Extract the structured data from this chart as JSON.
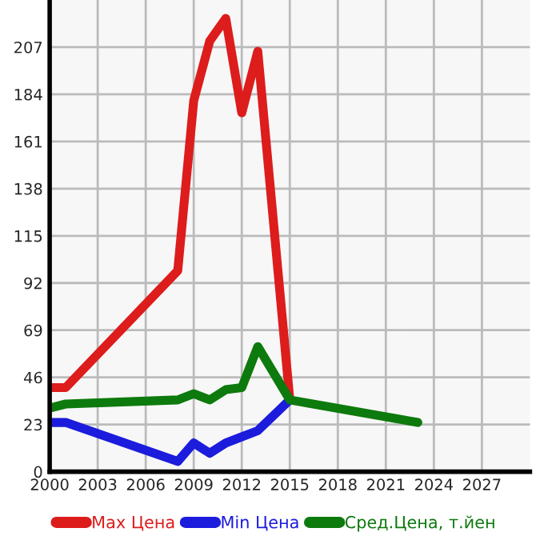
{
  "chart_data": {
    "type": "line",
    "x": [
      2000,
      2001,
      2008,
      2009,
      2010,
      2011,
      2012,
      2013,
      2015
    ],
    "series": [
      {
        "name": "Max Цена",
        "color": "#dd1c1c",
        "values": [
          41,
          41,
          98,
          181,
          210,
          221,
          175,
          205,
          35
        ]
      },
      {
        "name": "Min Цена",
        "color": "#1c1cdd",
        "values": [
          24,
          24,
          5,
          14,
          9,
          14,
          17,
          20,
          35
        ]
      },
      {
        "name": "Сред.Цена, т.йен",
        "color": "#0d7a0d",
        "x": [
          2000,
          2001,
          2008,
          2009,
          2010,
          2011,
          2012,
          2013,
          2015,
          2023
        ],
        "values": [
          31,
          33,
          35,
          38,
          35,
          40,
          41,
          61,
          35,
          24
        ]
      }
    ],
    "xlim": [
      2000,
      2030
    ],
    "xticks": [
      2000,
      2003,
      2006,
      2009,
      2012,
      2015,
      2018,
      2021,
      2024,
      2027
    ],
    "ylim": [
      0,
      230
    ],
    "yticks": [
      0,
      23,
      46,
      69,
      92,
      115,
      138,
      161,
      184,
      207
    ],
    "grid": true,
    "legend": "bottom",
    "marker": "none",
    "line_style": "solid"
  }
}
